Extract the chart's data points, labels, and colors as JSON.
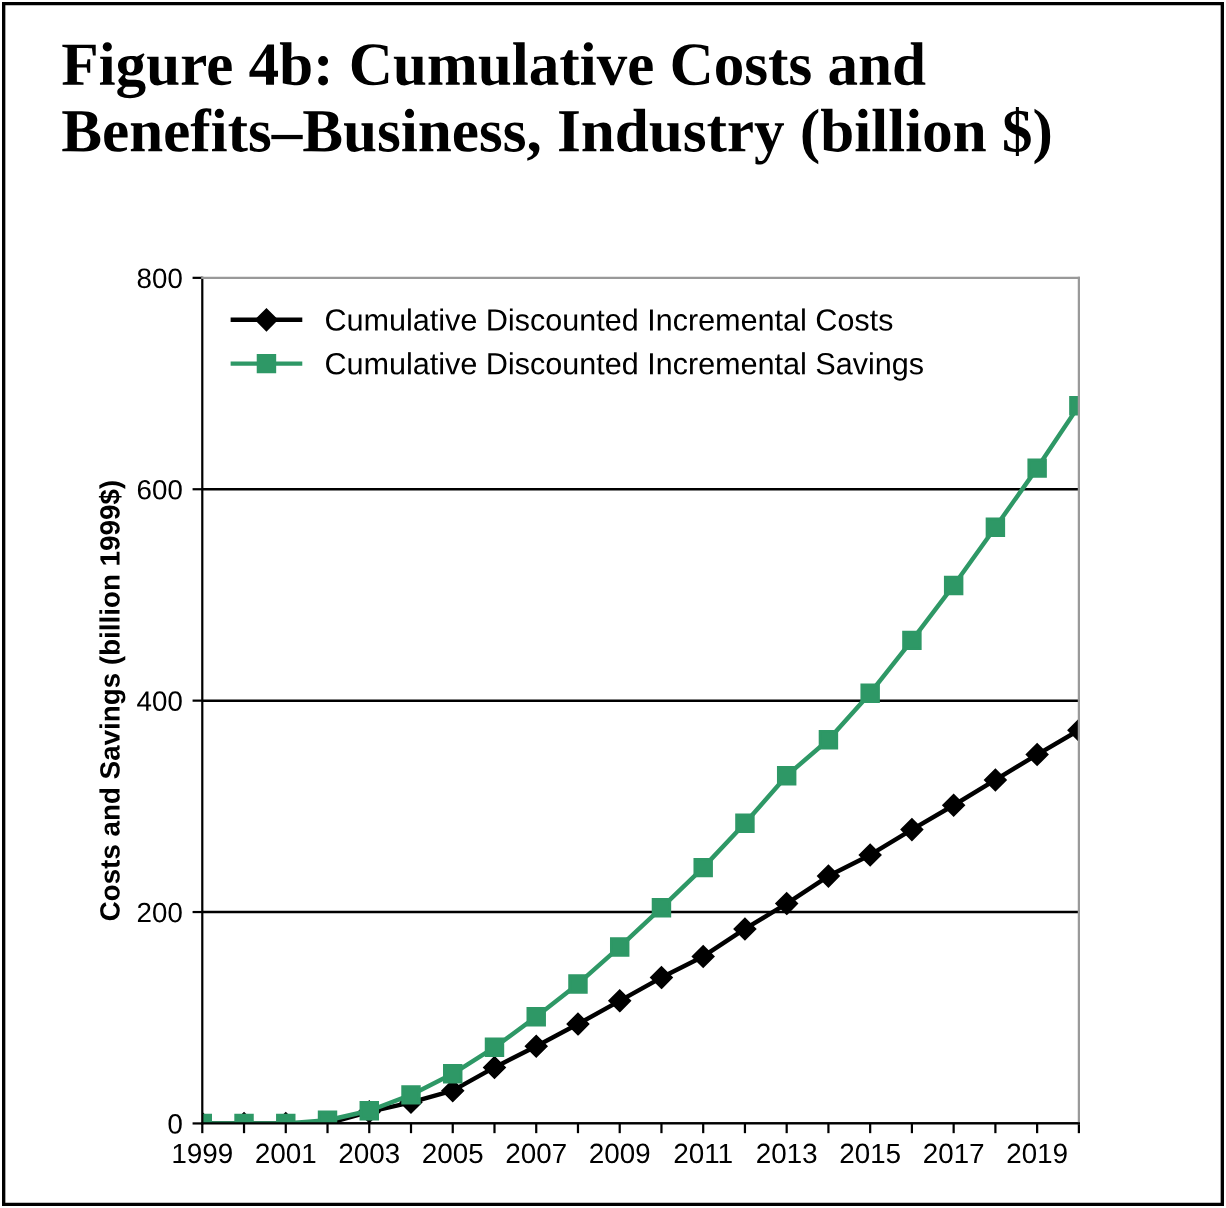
{
  "chart_data": {
    "type": "line",
    "title": "Figure 4b: Cumulative Costs and Benefits–Business, Industry (billion $)",
    "ylabel": "Costs and Savings (billion 1999$)",
    "categories": [
      "1999",
      null,
      "2001",
      null,
      "2003",
      null,
      "2005",
      null,
      "2007",
      null,
      "2009",
      null,
      "2011",
      null,
      "2013",
      null,
      "2015",
      null,
      "2017",
      null,
      "2019",
      null
    ],
    "series": [
      {
        "name": "Cumulative Discounted Incremental Costs",
        "color": "#000000",
        "marker": "diamond",
        "values": [
          0,
          0,
          0,
          0,
          11,
          20,
          31,
          53,
          73,
          94,
          116,
          138,
          158,
          184,
          208,
          234,
          254,
          278,
          301,
          325,
          349,
          372
        ]
      },
      {
        "name": "Cumulative Discounted Incremental Savings",
        "color": "#2e9866",
        "marker": "square",
        "values": [
          0,
          0,
          0,
          3,
          12,
          27,
          47,
          72,
          101,
          132,
          167,
          204,
          242,
          284,
          329,
          363,
          407,
          457,
          509,
          564,
          620,
          679
        ]
      }
    ],
    "ylim": [
      0,
      800
    ],
    "yticks": [
      0,
      200,
      400,
      600,
      800
    ],
    "grid": "y",
    "legend": "top left",
    "line_style": "solid"
  }
}
